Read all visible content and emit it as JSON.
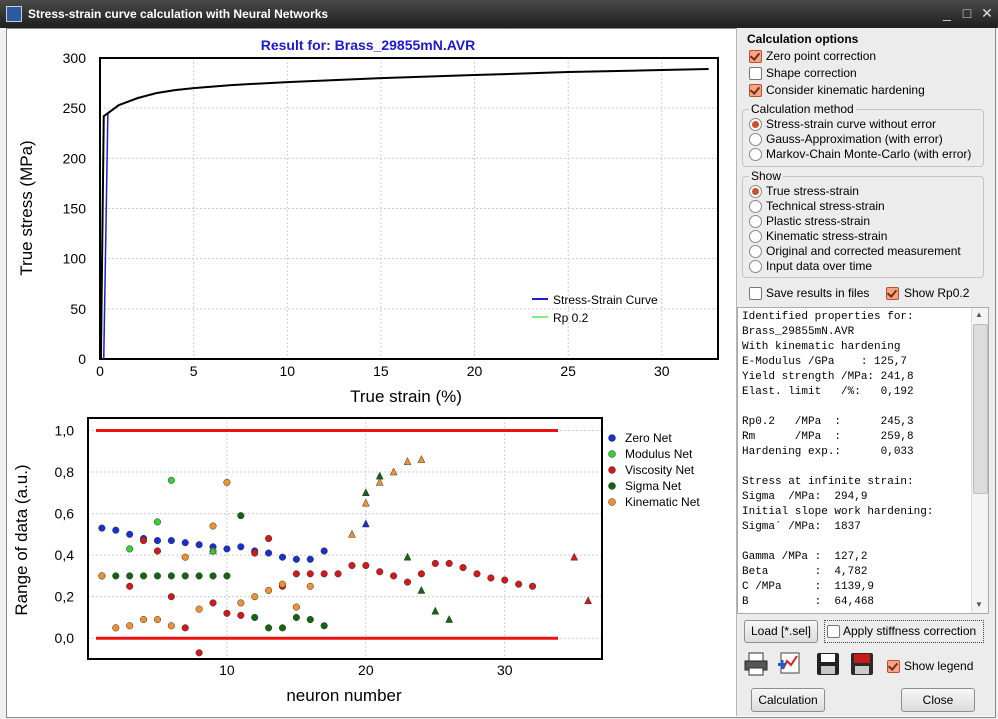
{
  "window": {
    "title": "Stress-strain curve calculation with Neural Networks",
    "minimize": "_",
    "maximize": "□",
    "close": "✕"
  },
  "top_chart": {
    "title": "Result for: Brass_29855mN.AVR",
    "xlabel": "True strain (%)",
    "ylabel": "True stress (MPa)",
    "xticks": [
      "0",
      "5",
      "10",
      "15",
      "20",
      "25",
      "30"
    ],
    "yticks": [
      "0",
      "50",
      "100",
      "150",
      "200",
      "250",
      "300"
    ],
    "legend": [
      "Stress-Strain Curve",
      "Rp 0.2"
    ]
  },
  "bottom_chart": {
    "xlabel": "neuron number",
    "ylabel": "Range of data (a.u.)",
    "xticks": [
      "10",
      "20",
      "30"
    ],
    "yticks": [
      "0,0",
      "0,2",
      "0,4",
      "0,6",
      "0,8",
      "1,0"
    ],
    "legend": [
      "Zero Net",
      "Modulus Net",
      "Viscosity Net",
      "Sigma Net",
      "Kinematic Net"
    ]
  },
  "chart_data": [
    {
      "type": "line",
      "title": "Result for: Brass_29855mN.AVR",
      "xlabel": "True strain (%)",
      "ylabel": "True stress (MPa)",
      "xlim": [
        0,
        33
      ],
      "ylim": [
        0,
        300
      ],
      "grid": true,
      "legend_position": "bottom-right",
      "series": [
        {
          "name": "Stress-Strain Curve",
          "color": "#000000",
          "x": [
            0.05,
            0.2,
            0.35,
            1,
            2,
            3,
            4,
            5,
            7,
            10,
            15,
            20,
            25,
            30,
            32.5
          ],
          "y": [
            0,
            242,
            244,
            253,
            260,
            265,
            268,
            270,
            273,
            276,
            280,
            283,
            286,
            288,
            289
          ]
        },
        {
          "name": "Rp 0.2",
          "color": "#1f1fcf",
          "x": [
            0.2,
            0.42
          ],
          "y": [
            0,
            245
          ]
        }
      ]
    },
    {
      "type": "scatter",
      "xlabel": "neuron number",
      "ylabel": "Range of data (a.u.)",
      "xlim": [
        0,
        37
      ],
      "ylim": [
        -0.1,
        1.06
      ],
      "grid": true,
      "legend_position": "right",
      "ref_lines": [
        0.0,
        1.0
      ],
      "series": [
        {
          "name": "Zero Net",
          "color": "#1a2fcf",
          "marker": "circle",
          "x": [
            1,
            2,
            3,
            4,
            5,
            6,
            7,
            8,
            9,
            10,
            11,
            12,
            13,
            14,
            15,
            16,
            17
          ],
          "y": [
            0.53,
            0.52,
            0.5,
            0.48,
            0.47,
            0.47,
            0.46,
            0.45,
            0.44,
            0.43,
            0.44,
            0.42,
            0.41,
            0.39,
            0.38,
            0.38,
            0.42
          ]
        },
        {
          "name": "Modulus Net",
          "color": "#35d035",
          "marker": "circle",
          "x": [
            3,
            5,
            6,
            9
          ],
          "y": [
            0.43,
            0.56,
            0.76,
            0.42
          ]
        },
        {
          "name": "Viscosity Net",
          "color": "#d21818",
          "marker": "circle",
          "x": [
            3,
            4,
            5,
            6,
            7,
            8,
            9,
            10,
            11,
            12,
            13,
            14,
            15,
            16,
            17,
            18,
            19,
            20,
            21,
            22,
            23,
            24,
            25,
            26,
            27,
            28,
            29,
            30,
            31,
            32
          ],
          "y": [
            0.25,
            0.47,
            0.42,
            0.2,
            0.05,
            -0.07,
            0.17,
            0.12,
            0.11,
            0.41,
            0.48,
            0.25,
            0.31,
            0.31,
            0.31,
            0.31,
            0.35,
            0.35,
            0.32,
            0.3,
            0.27,
            0.31,
            0.36,
            0.36,
            0.34,
            0.31,
            0.29,
            0.28,
            0.26,
            0.25
          ]
        },
        {
          "name": "Sigma Net",
          "color": "#126612",
          "marker": "circle",
          "x": [
            1,
            2,
            3,
            4,
            5,
            6,
            7,
            8,
            9,
            10,
            11,
            12,
            13,
            14,
            15,
            16,
            17
          ],
          "y": [
            0.3,
            0.3,
            0.3,
            0.3,
            0.3,
            0.3,
            0.3,
            0.3,
            0.3,
            0.3,
            0.59,
            0.1,
            0.05,
            0.05,
            0.1,
            0.09,
            0.06
          ]
        },
        {
          "name": "Kinematic Net",
          "color": "#f09030",
          "marker": "circle",
          "x": [
            1,
            2,
            3,
            4,
            5,
            6,
            7,
            8,
            9,
            10,
            11,
            12,
            13,
            14,
            15,
            16
          ],
          "y": [
            0.3,
            0.05,
            0.06,
            0.09,
            0.09,
            0.06,
            0.39,
            0.14,
            0.54,
            0.75,
            0.17,
            0.2,
            0.23,
            0.26,
            0.15,
            0.25
          ]
        },
        {
          "name": "",
          "color": "#1a2fcf",
          "marker": "triangle",
          "x": [
            20
          ],
          "y": [
            0.55
          ]
        },
        {
          "name": "",
          "color": "#35d035",
          "marker": "triangle",
          "x": [
            9
          ],
          "y": [
            0.42
          ]
        },
        {
          "name": "",
          "color": "#d21818",
          "marker": "triangle",
          "x": [
            35,
            36
          ],
          "y": [
            0.39,
            0.18
          ]
        },
        {
          "name": "",
          "color": "#126612",
          "marker": "triangle",
          "x": [
            20,
            21,
            23,
            24,
            25,
            26
          ],
          "y": [
            0.7,
            0.78,
            0.39,
            0.23,
            0.13,
            0.09
          ]
        },
        {
          "name": "",
          "color": "#f09030",
          "marker": "triangle",
          "x": [
            19,
            20,
            21,
            22,
            23,
            24
          ],
          "y": [
            0.5,
            0.65,
            0.75,
            0.8,
            0.85,
            0.86
          ]
        }
      ]
    }
  ],
  "calc_options": {
    "title": "Calculation options",
    "items": [
      {
        "label": "Zero point correction",
        "checked": true
      },
      {
        "label": "Shape correction",
        "checked": false
      },
      {
        "label": "Consider kinematic hardening",
        "checked": true
      }
    ]
  },
  "calc_method": {
    "title": "Calculation method",
    "items": [
      {
        "label": "Stress-strain curve without error",
        "selected": true
      },
      {
        "label": "Gauss-Approximation (with error)",
        "selected": false
      },
      {
        "label": "Markov-Chain Monte-Carlo  (with error)",
        "selected": false
      }
    ]
  },
  "show": {
    "title": "Show",
    "items": [
      {
        "label": "True stress-strain",
        "selected": true
      },
      {
        "label": "Technical stress-strain",
        "selected": false
      },
      {
        "label": "Plastic stress-strain",
        "selected": false
      },
      {
        "label": "Kinematic stress-strain",
        "selected": false
      },
      {
        "label": "Original and corrected measurement",
        "selected": false
      },
      {
        "label": "Input data over time",
        "selected": false
      }
    ]
  },
  "save_results": {
    "label": "Save results in files",
    "checked": false
  },
  "show_rp02": {
    "label": "Show Rp0.2",
    "checked": true
  },
  "results_text": "Identified properties for:\nBrass_29855mN.AVR\nWith kinematic hardening\nE-Modulus /GPa    : 125,7\nYield strength /MPa: 241,8\nElast. limit   /%:   0,192\n\nRp0.2   /MPa  :      245,3\nRm      /MPa  :      259,8\nHardening exp.:      0,033\n\nStress at infinite strain:\nSigma  /MPa:  294,9\nInitial slope work hardening:\nSigma´ /MPa:  1837\n\nGamma /MPa :  127,2\nBeta       :  4,782\nC /MPa     :  1139,9\nB          :  64,468",
  "load_button": "Load [*.sel]",
  "apply_stiffness": {
    "label": "Apply stiffness correction",
    "checked": false
  },
  "show_legend": {
    "label": "Show legend",
    "checked": true
  },
  "icons": [
    "printer-icon",
    "chart-export-icon",
    "save-disk-icon",
    "rtf-export-icon"
  ],
  "calc_button": "Calculation",
  "close_button": "Close"
}
